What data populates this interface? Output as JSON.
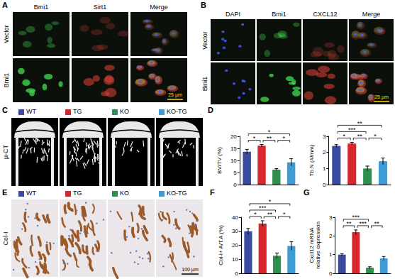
{
  "panels": {
    "A": {
      "label": "A",
      "columns": [
        "Bmi1",
        "Sirt1",
        "Merge"
      ],
      "rows": [
        "Vector",
        "Bmi1"
      ],
      "scale_bar": "25 µm"
    },
    "B": {
      "label": "B",
      "columns": [
        "DAPI",
        "Bmi1",
        "CXCL12",
        "Merge"
      ],
      "rows": [
        "Vector",
        "Bmi1"
      ],
      "scale_bar": "25 µm"
    },
    "C": {
      "label": "C",
      "row_label": "µ-CT",
      "legend": [
        {
          "name": "WT",
          "color": "#3a4a9f"
        },
        {
          "name": "TG",
          "color": "#d7262c"
        },
        {
          "name": "KO",
          "color": "#2f8f4e"
        },
        {
          "name": "KO-TG",
          "color": "#3d9bd5"
        }
      ]
    },
    "D": {
      "label": "D"
    },
    "E": {
      "label": "E",
      "row_label": "Col-I",
      "scale_bar": "100 µm",
      "legend": [
        {
          "name": "WT",
          "color": "#3a4a9f"
        },
        {
          "name": "TG",
          "color": "#d7262c"
        },
        {
          "name": "KO",
          "color": "#2f8f4e"
        },
        {
          "name": "KO-TG",
          "color": "#3d9bd5"
        }
      ]
    },
    "F": {
      "label": "F"
    },
    "G": {
      "label": "G"
    }
  },
  "chart_data": [
    {
      "type": "bar",
      "y_label": "BV/TV (%)",
      "categories": [
        "WT",
        "TG",
        "KO",
        "KO-TG"
      ],
      "values": [
        13.6,
        16.1,
        6.2,
        9.2
      ],
      "errors": [
        1.0,
        0.5,
        0.4,
        1.5
      ],
      "colors": [
        "#3a4a9f",
        "#d7262c",
        "#2f8f4e",
        "#3d9bd5"
      ],
      "ylim": [
        0,
        20
      ],
      "yticks": [
        0,
        5,
        10,
        15,
        20
      ],
      "grid": false,
      "tick_labels": "y",
      "annotations": [
        {
          "from": 0,
          "to": 1,
          "label": "*"
        },
        {
          "from": 1,
          "to": 2,
          "label": "**"
        },
        {
          "from": 2,
          "to": 3,
          "label": "*"
        },
        {
          "from": 0,
          "to": 3,
          "label": "*"
        }
      ]
    },
    {
      "type": "bar",
      "y_label": "Tb.N (#/mm)",
      "categories": [
        "WT",
        "TG",
        "KO",
        "KO-TG"
      ],
      "values": [
        2.4,
        2.55,
        1.0,
        1.45
      ],
      "errors": [
        0.08,
        0.08,
        0.15,
        0.2
      ],
      "colors": [
        "#3a4a9f",
        "#d7262c",
        "#2f8f4e",
        "#3d9bd5"
      ],
      "ylim": [
        0,
        3
      ],
      "yticks": [
        0,
        1,
        2,
        3
      ],
      "grid": false,
      "tick_labels": "y",
      "annotations": [
        {
          "from": 0,
          "to": 1,
          "label": "*"
        },
        {
          "from": 1,
          "to": 2,
          "label": "**"
        },
        {
          "from": 2,
          "to": 3,
          "label": "*"
        },
        {
          "from": 0,
          "to": 2,
          "label": "***"
        },
        {
          "from": 0,
          "to": 3,
          "label": "**"
        }
      ]
    },
    {
      "type": "bar",
      "y_label": "Col-I+ A/T.A (%)",
      "categories": [
        "WT",
        "TG",
        "KO",
        "KO-TG"
      ],
      "values": [
        30,
        35.5,
        12.5,
        19.5
      ],
      "errors": [
        2,
        2,
        2,
        3
      ],
      "colors": [
        "#3a4a9f",
        "#d7262c",
        "#2f8f4e",
        "#3d9bd5"
      ],
      "ylim": [
        0,
        40
      ],
      "yticks": [
        0,
        10,
        20,
        30,
        40
      ],
      "grid": false,
      "tick_labels": "y",
      "annotations": [
        {
          "from": 0,
          "to": 1,
          "label": "*"
        },
        {
          "from": 1,
          "to": 2,
          "label": "**"
        },
        {
          "from": 2,
          "to": 3,
          "label": "*"
        },
        {
          "from": 0,
          "to": 2,
          "label": "***"
        },
        {
          "from": 0,
          "to": 3,
          "label": "*"
        }
      ]
    },
    {
      "type": "bar",
      "y_label": "Cxcl12 mRNA\nrelative expression",
      "categories": [
        "WT",
        "TG",
        "KO",
        "KO-TG"
      ],
      "values": [
        1.0,
        2.2,
        0.3,
        0.8
      ],
      "errors": [
        0.05,
        0.12,
        0.05,
        0.1
      ],
      "colors": [
        "#3a4a9f",
        "#d7262c",
        "#2f8f4e",
        "#3d9bd5"
      ],
      "ylim": [
        0,
        3
      ],
      "yticks": [
        0,
        1,
        2,
        3
      ],
      "grid": false,
      "tick_labels": "y",
      "annotations": [
        {
          "from": 0,
          "to": 1,
          "label": "**"
        },
        {
          "from": 1,
          "to": 2,
          "label": "***"
        },
        {
          "from": 2,
          "to": 3,
          "label": "**"
        },
        {
          "from": 0,
          "to": 2,
          "label": "***"
        }
      ]
    }
  ]
}
